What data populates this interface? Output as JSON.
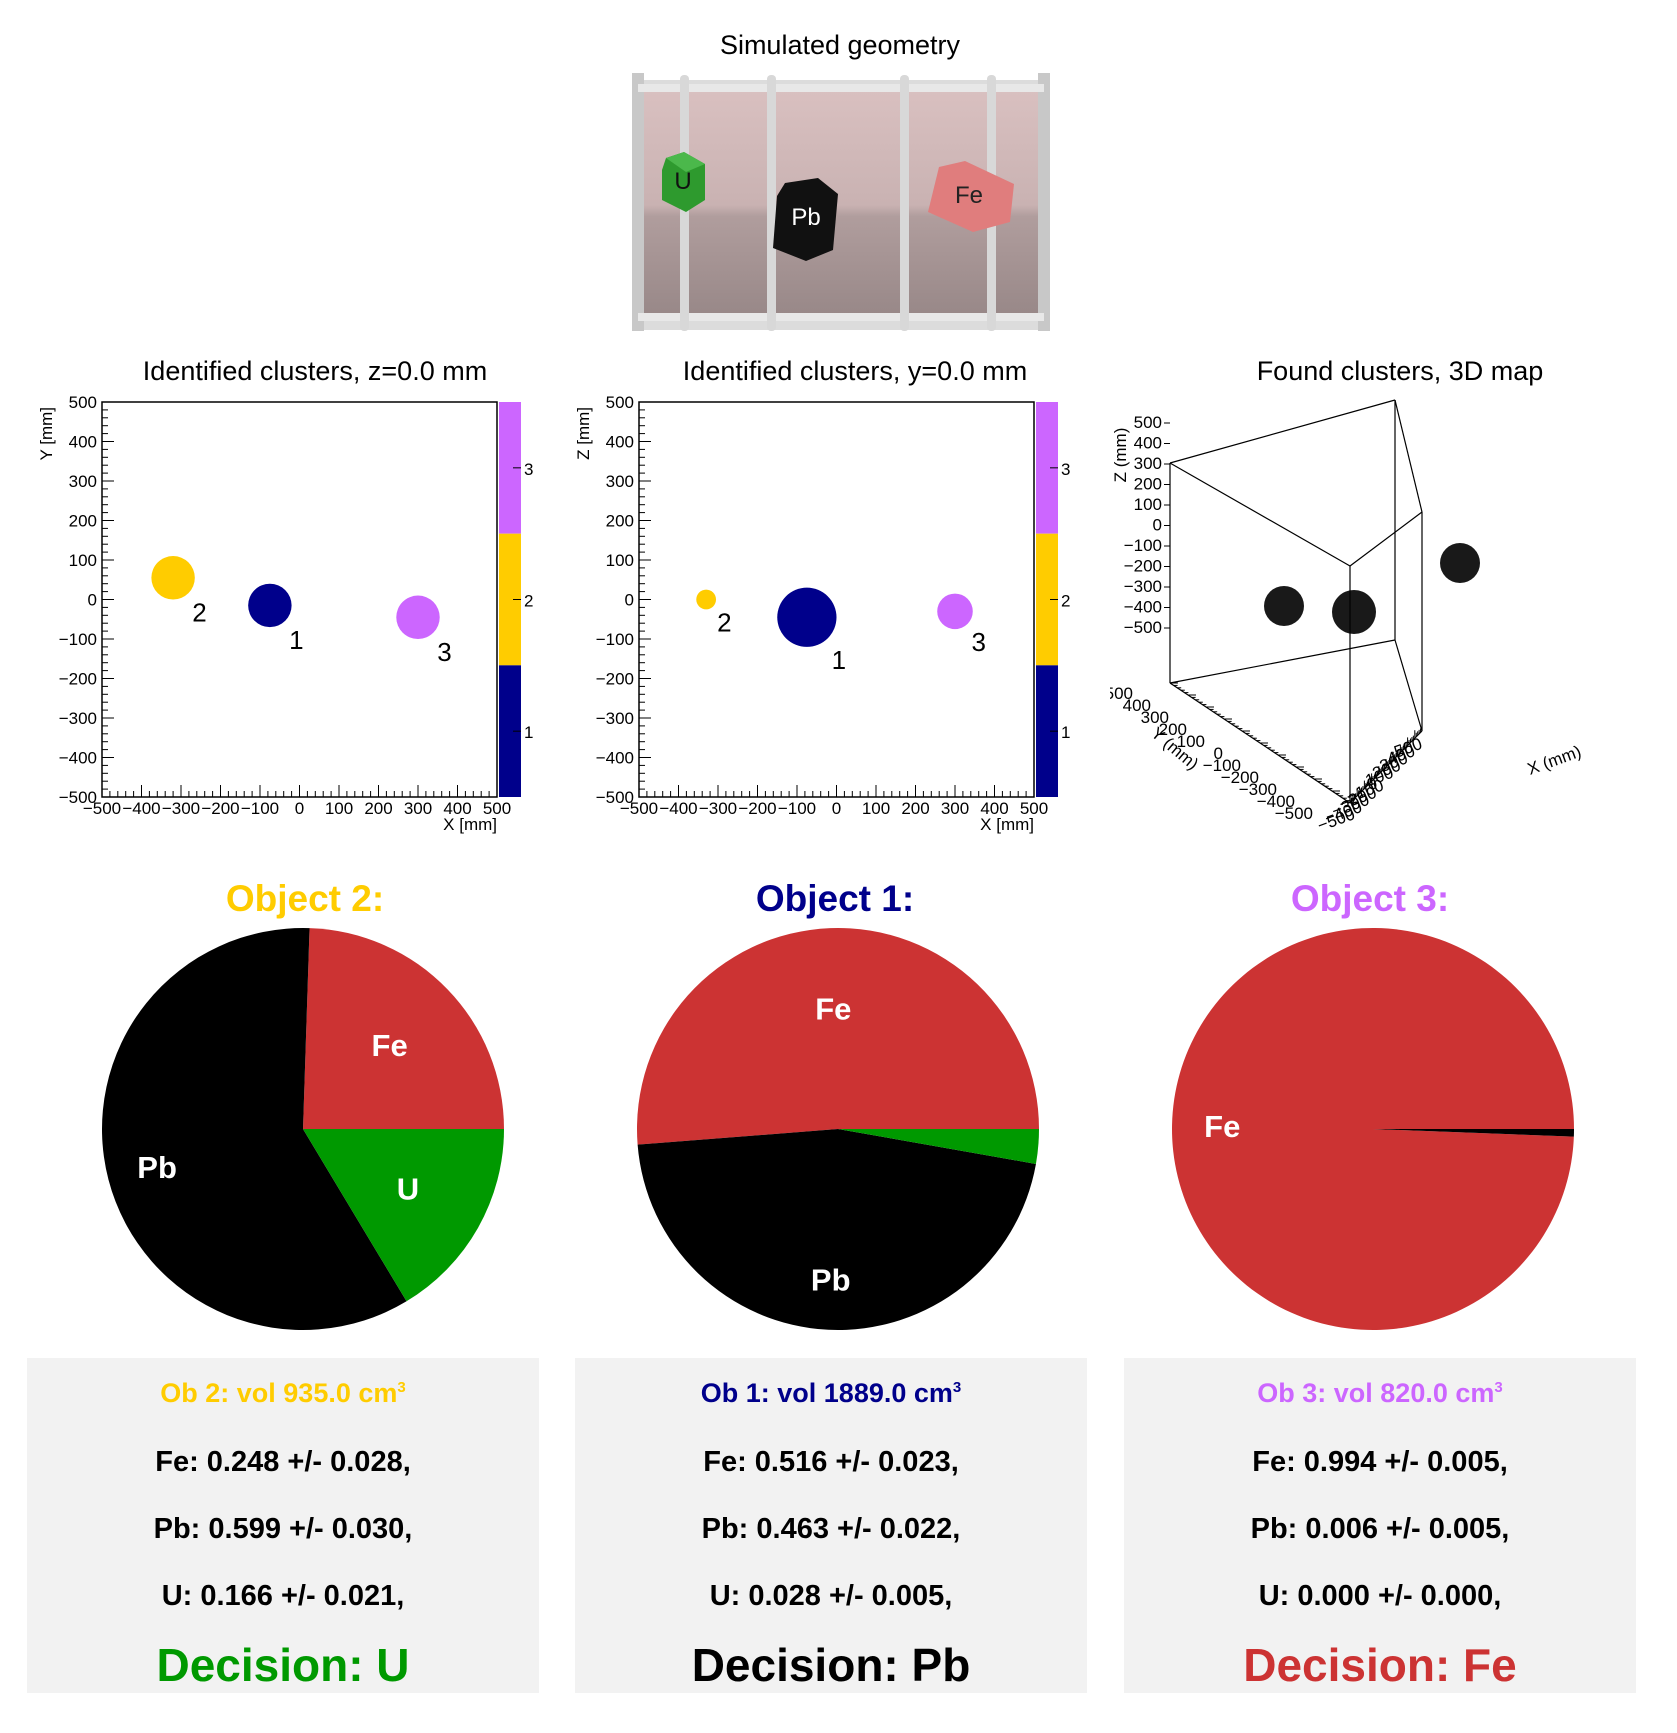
{
  "geometry": {
    "title": "Simulated geometry",
    "labels": [
      "U",
      "Pb",
      "Fe"
    ]
  },
  "colors": {
    "cluster1": "#00008b",
    "cluster2": "#ffcc00",
    "cluster3": "#cc66ff",
    "fe": "#cc3333",
    "pb": "#000000",
    "u": "#009900"
  },
  "chart_data": [
    {
      "type": "heatmap",
      "title": "Identified clusters, z=0.0 mm",
      "xlabel": "X [mm]",
      "ylabel": "Y [mm]",
      "xlim": [
        -500,
        500
      ],
      "ylim": [
        -500,
        500
      ],
      "xticks": [
        "−500",
        "−400",
        "−300",
        "−200",
        "−100",
        "0",
        "100",
        "200",
        "300",
        "400",
        "500"
      ],
      "yticks": [
        "500",
        "400",
        "300",
        "200",
        "100",
        "0",
        "−100",
        "−200",
        "−300",
        "−400",
        "−500"
      ],
      "colorbar": [
        "3",
        "2",
        "1"
      ],
      "clusters": [
        {
          "id": "1",
          "x": -75,
          "y": -15,
          "r": 55
        },
        {
          "id": "2",
          "x": -320,
          "y": 55,
          "r": 55
        },
        {
          "id": "3",
          "x": 300,
          "y": -45,
          "r": 55
        }
      ]
    },
    {
      "type": "heatmap",
      "title": "Identified clusters, y=0.0 mm",
      "xlabel": "X [mm]",
      "ylabel": "Z [mm]",
      "xlim": [
        -500,
        500
      ],
      "ylim": [
        -500,
        500
      ],
      "xticks": [
        "−500",
        "−400",
        "−300",
        "−200",
        "−100",
        "0",
        "100",
        "200",
        "300",
        "400",
        "500"
      ],
      "yticks": [
        "500",
        "400",
        "300",
        "200",
        "100",
        "0",
        "−100",
        "−200",
        "−300",
        "−400",
        "−500"
      ],
      "colorbar": [
        "3",
        "2",
        "1"
      ],
      "clusters": [
        {
          "id": "1",
          "x": -75,
          "y": -45,
          "r": 75
        },
        {
          "id": "2",
          "x": -330,
          "y": 0,
          "r": 25
        },
        {
          "id": "3",
          "x": 300,
          "y": -30,
          "r": 45
        }
      ]
    },
    {
      "type": "scatter",
      "title": "Found clusters, 3D map",
      "xlabel": "X (mm)",
      "ylabel": "Y (mm)",
      "zlabel": "Z (mm)",
      "zticks": [
        "500",
        "400",
        "300",
        "200",
        "100",
        "0",
        "−100",
        "−200",
        "−300",
        "−400",
        "−500"
      ],
      "yticks": [
        "500",
        "400",
        "300",
        "200",
        "100",
        "0",
        "−100",
        "−200",
        "−300",
        "−400",
        "−500"
      ],
      "xticks": [
        "−500",
        "−400",
        "−300",
        "−200",
        "−100",
        "0",
        "100",
        "200",
        "300",
        "400",
        "500"
      ]
    },
    {
      "type": "pie",
      "title": "Object 2:",
      "slices": [
        {
          "label": "Fe",
          "value": 0.248
        },
        {
          "label": "Pb",
          "value": 0.599
        },
        {
          "label": "U",
          "value": 0.166
        }
      ]
    },
    {
      "type": "pie",
      "title": "Object 1:",
      "slices": [
        {
          "label": "Fe",
          "value": 0.516
        },
        {
          "label": "Pb",
          "value": 0.463
        },
        {
          "label": "U",
          "value": 0.028
        }
      ]
    },
    {
      "type": "pie",
      "title": "Object 3:",
      "slices": [
        {
          "label": "Fe",
          "value": 0.994
        },
        {
          "label": "Pb",
          "value": 0.006
        },
        {
          "label": "U",
          "value": 0.0
        }
      ]
    }
  ],
  "panels": [
    {
      "vol": "Ob 2: vol 935.0 cm",
      "sup": "3",
      "fe": "Fe:  0.248 +/- 0.028,",
      "pb": "Pb:  0.599 +/- 0.030,",
      "u": "U:  0.166 +/- 0.021,",
      "decision": "Decision: U"
    },
    {
      "vol": "Ob 1: vol 1889.0 cm",
      "sup": "3",
      "fe": "Fe:  0.516 +/- 0.023,",
      "pb": "Pb:  0.463 +/- 0.022,",
      "u": "U:  0.028 +/- 0.005,",
      "decision": "Decision: Pb"
    },
    {
      "vol": "Ob 3: vol 820.0 cm",
      "sup": "3",
      "fe": "Fe:  0.994 +/- 0.005,",
      "pb": "Pb:  0.006 +/- 0.005,",
      "u": "U:  0.000 +/- 0.000,",
      "decision": "Decision: Fe"
    }
  ]
}
